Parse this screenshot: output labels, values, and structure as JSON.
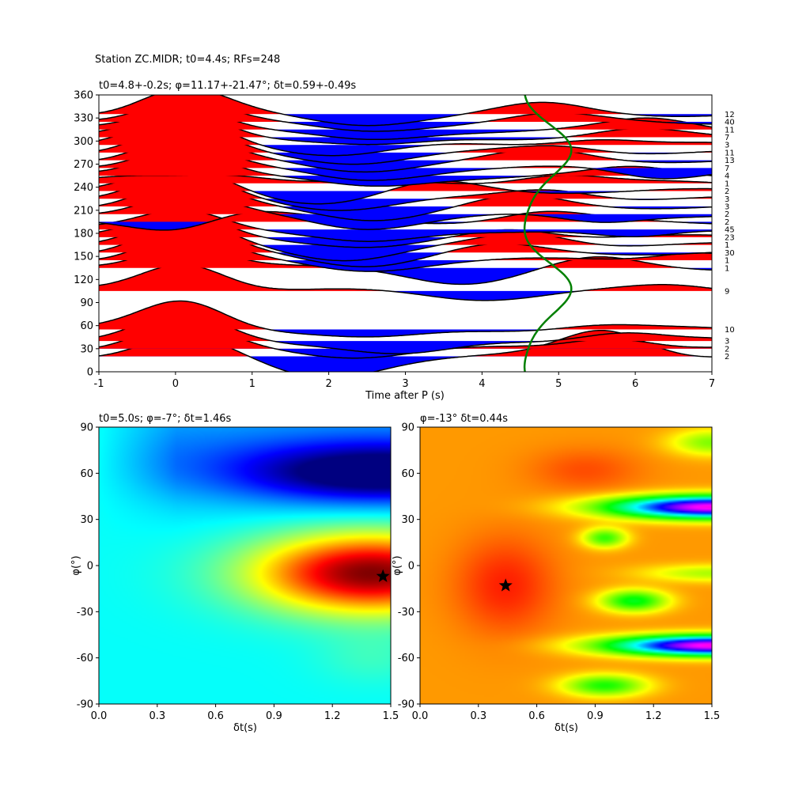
{
  "figure": {
    "suptitle": "Station ZC.MIDR; t0=4.4s; RFs=248"
  },
  "chart_data": [
    {
      "type": "line",
      "title": "t0=4.8+-0.2s; φ=11.17+-21.47°; δt=0.59+-0.49s",
      "xlabel": "Time after P (s)",
      "ylabel": "",
      "xlim": [
        -1,
        7
      ],
      "ylim": [
        0,
        360
      ],
      "xticks": [
        -1,
        0,
        1,
        2,
        3,
        4,
        5,
        6,
        7
      ],
      "yticks": [
        0,
        30,
        60,
        90,
        120,
        150,
        180,
        210,
        240,
        270,
        300,
        330,
        360
      ],
      "fill_positive_color": "#ff0000",
      "fill_negative_color": "#0000ff",
      "curve_color": "#008000",
      "traces": [
        {
          "baz": 20,
          "count": "2",
          "amp": 0.45,
          "neg": -0.45,
          "neg_t": 1.9,
          "late": 0.55,
          "late_t": 5.6
        },
        {
          "baz": 30,
          "count": "2",
          "amp": 0.5,
          "neg": -0.15,
          "neg_t": 2.4,
          "late": 0.25,
          "late_t": 5.7
        },
        {
          "baz": 40,
          "count": "3",
          "amp": 0.55,
          "neg": -0.3,
          "neg_t": 3.0,
          "late": 0.2,
          "late_t": 5.8
        },
        {
          "baz": 55,
          "count": "10",
          "amp": 0.6,
          "neg": -0.2,
          "neg_t": 2.6,
          "late": 0.1,
          "late_t": 5.5
        },
        {
          "baz": 105,
          "count": "9",
          "amp": 0.6,
          "neg": -0.15,
          "neg_t": 4.0,
          "late": 0.1,
          "late_t": 6.5
        },
        {
          "baz": 135,
          "count": "1",
          "amp": 0.5,
          "neg": -0.3,
          "neg_t": 3.8,
          "late": 0.2,
          "late_t": 5.5
        },
        {
          "baz": 145,
          "count": "1",
          "amp": 0.55,
          "neg": -0.2,
          "neg_t": 2.4,
          "late": 0.2,
          "late_t": 6.8
        },
        {
          "baz": 155,
          "count": "30",
          "amp": 0.55,
          "neg": -0.25,
          "neg_t": 2.5,
          "late": 0.15,
          "late_t": 4.2
        },
        {
          "baz": 165,
          "count": "1",
          "amp": 0.5,
          "neg": -0.3,
          "neg_t": 2.3,
          "late": 0.25,
          "late_t": 4.6
        },
        {
          "baz": 175,
          "count": "23",
          "amp": 0.5,
          "neg": -0.25,
          "neg_t": 2.6,
          "late": 0.2,
          "late_t": 4.4
        },
        {
          "baz": 185,
          "count": "45",
          "amp": 0.45,
          "neg": -0.3,
          "neg_t": 2.5,
          "late": -0.2,
          "late_t": 6.0
        },
        {
          "baz": 195,
          "count": "2",
          "amp": -0.3,
          "neg": 0.3,
          "neg_t": 0.7,
          "late": 0.2,
          "late_t": 4.8
        },
        {
          "baz": 205,
          "count": "2",
          "amp": 0.45,
          "neg": -0.3,
          "neg_t": 2.4,
          "late": -0.2,
          "late_t": 5.5
        },
        {
          "baz": 215,
          "count": "3",
          "amp": 0.5,
          "neg": -0.25,
          "neg_t": 2.6,
          "late": 0.2,
          "late_t": 4.5
        },
        {
          "baz": 225,
          "count": "3",
          "amp": 0.5,
          "neg": -0.2,
          "neg_t": 2.2,
          "late": 0.2,
          "late_t": 4.9
        },
        {
          "baz": 235,
          "count": "2",
          "amp": 0.5,
          "neg": -0.25,
          "neg_t": 2.0,
          "late": 0.2,
          "late_t": 3.4
        },
        {
          "baz": 245,
          "count": "1",
          "amp": -0.3,
          "neg": 0.5,
          "neg_t": 0.2,
          "late": 0.2,
          "late_t": 5.0
        },
        {
          "baz": 255,
          "count": "4",
          "amp": 0.55,
          "neg": -0.25,
          "neg_t": 2.5,
          "late": 0.15,
          "late_t": 6.0
        },
        {
          "baz": 265,
          "count": "7",
          "amp": 0.5,
          "neg": -0.25,
          "neg_t": 2.4,
          "late": -0.2,
          "late_t": 6.3
        },
        {
          "baz": 275,
          "count": "13",
          "amp": 0.5,
          "neg": -0.2,
          "neg_t": 2.4,
          "late": 0.2,
          "late_t": 4.8
        },
        {
          "baz": 285,
          "count": "11",
          "amp": 0.5,
          "neg": -0.2,
          "neg_t": 2.4,
          "late": 0.15,
          "late_t": 5.0
        },
        {
          "baz": 295,
          "count": "3",
          "amp": 0.55,
          "neg": -0.2,
          "neg_t": 2.2,
          "late": 0.15,
          "late_t": 5.5
        },
        {
          "baz": 305,
          "count": "7",
          "amp": 0.55,
          "neg": -0.2,
          "neg_t": 2.6,
          "late": 0.15,
          "late_t": 6.0
        },
        {
          "baz": 315,
          "count": "11",
          "amp": 0.5,
          "neg": -0.25,
          "neg_t": 2.5,
          "late": 0.2,
          "late_t": 6.2
        },
        {
          "baz": 325,
          "count": "40",
          "amp": 0.5,
          "neg": -0.2,
          "neg_t": 2.4,
          "late": 0.15,
          "late_t": 4.9
        },
        {
          "baz": 335,
          "count": "12",
          "amp": 0.55,
          "neg": -0.2,
          "neg_t": 2.4,
          "late": 0.2,
          "late_t": 4.8
        }
      ]
    },
    {
      "type": "heatmap",
      "title": "t0=5.0s; φ=-7°; δt=1.46s",
      "xlabel": "δt(s)",
      "ylabel": "φ(°)",
      "xlim": [
        0,
        1.5
      ],
      "ylim": [
        -90,
        90
      ],
      "xticks": [
        0.0,
        0.3,
        0.6,
        0.9,
        1.2,
        1.5
      ],
      "yticks": [
        -90,
        -60,
        -30,
        0,
        30,
        60,
        90
      ],
      "colormap": "jet",
      "best": {
        "dt": 1.46,
        "phi": -7
      }
    },
    {
      "type": "heatmap",
      "title": "φ=-13° δt=0.44s",
      "xlabel": "δt(s)",
      "ylabel": "φ(°)",
      "xlim": [
        0,
        1.5
      ],
      "ylim": [
        -90,
        90
      ],
      "xticks": [
        0.0,
        0.3,
        0.6,
        0.9,
        1.2,
        1.5
      ],
      "yticks": [
        -90,
        -60,
        -30,
        0,
        30,
        60,
        90
      ],
      "colormap": "hsv",
      "best": {
        "dt": 0.44,
        "phi": -13
      }
    }
  ]
}
